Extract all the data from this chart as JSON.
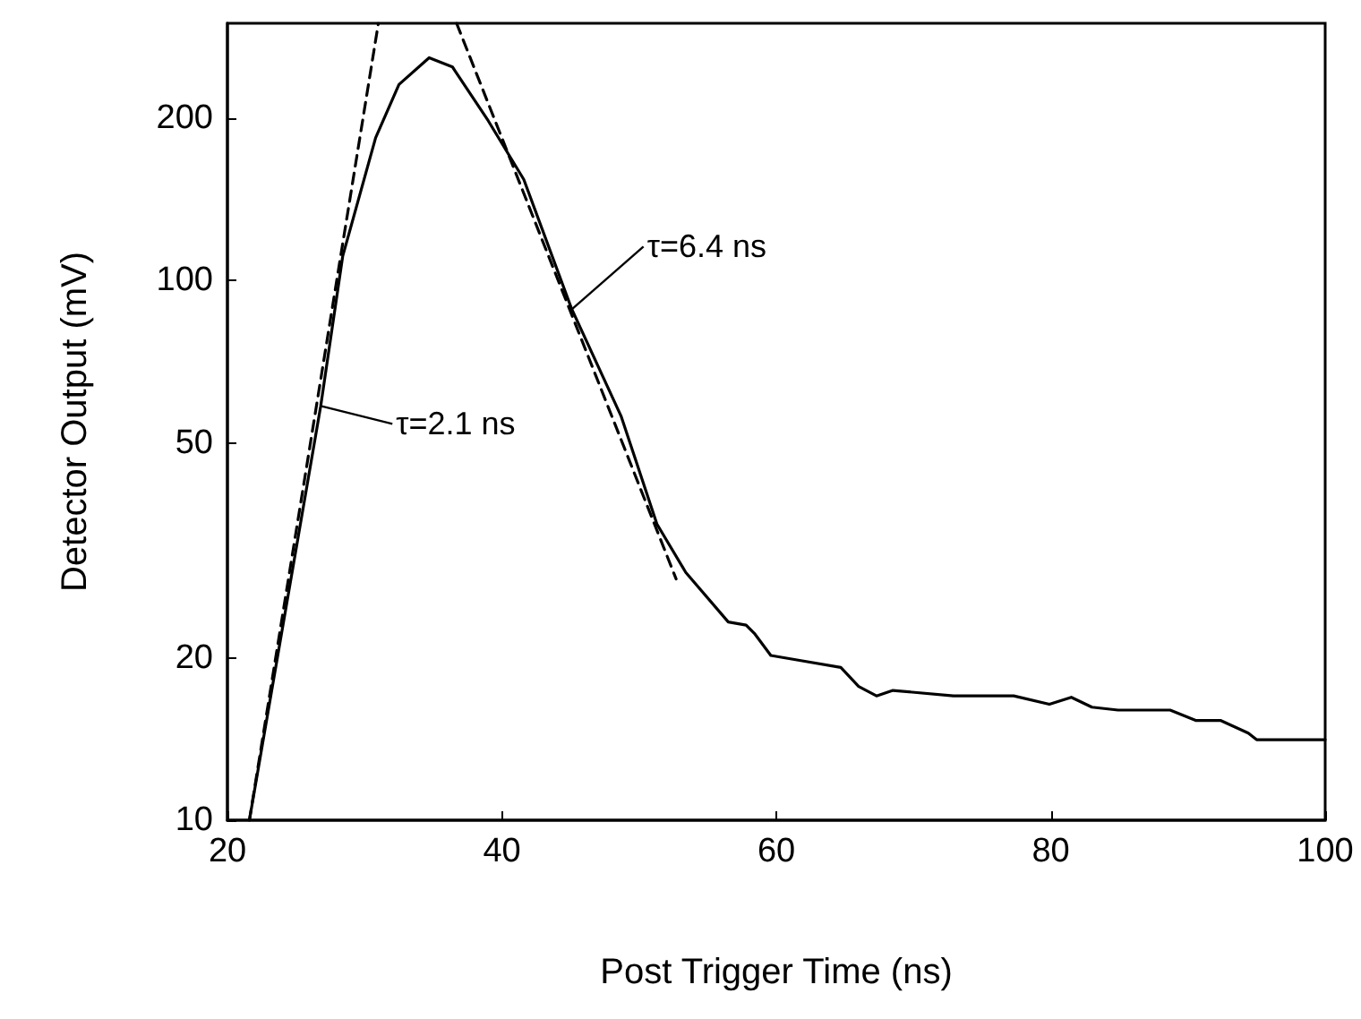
{
  "chart_data": {
    "type": "line",
    "xlabel": "Post Trigger Time (ns)",
    "ylabel": "Detector Output (mV)",
    "log": "y",
    "xlim": [
      20,
      100
    ],
    "xticks": [
      20,
      40,
      60,
      80,
      100
    ],
    "ylim": [
      10,
      300
    ],
    "yticks": [
      10,
      20,
      50,
      100,
      200
    ],
    "grid": false,
    "marker": "none",
    "series": [
      {
        "color": "#000000",
        "line_style": "solid",
        "x": [
          21.6,
          26.8,
          28.4,
          30.8,
          32.5,
          34.7,
          36.4,
          39.0,
          41.6,
          45.1,
          48.7,
          51.3,
          53.4,
          56.5,
          57.8,
          58.4,
          59.6,
          61.6,
          64.7,
          66.0,
          67.3,
          68.5,
          72.9,
          77.3,
          79.9,
          81.5,
          83.0,
          84.9,
          88.7,
          90.6,
          92.4,
          94.4,
          95.0,
          100
        ],
        "values": [
          10,
          58.6,
          111,
          184,
          231,
          259,
          249,
          198,
          154,
          88.5,
          56,
          35.4,
          28.8,
          23.3,
          23,
          22.2,
          20.2,
          19.8,
          19.2,
          17.7,
          17,
          17.4,
          17,
          17,
          16.4,
          16.9,
          16.2,
          16,
          16,
          15.3,
          15.3,
          14.5,
          14.1,
          14.1
        ]
      },
      {
        "color": "#000000",
        "line_style": "dashed",
        "x": [
          21.6,
          31.0
        ],
        "values": [
          10,
          300
        ]
      },
      {
        "color": "#000000",
        "line_style": "dashed",
        "x": [
          36.7,
          52.7
        ],
        "values": [
          300,
          28
        ]
      }
    ],
    "annotations": [
      {
        "text": "τ=2.1 ns",
        "x": 26.8,
        "y": 58.6
      },
      {
        "text": "τ=6.4 ns",
        "x": 45.1,
        "y": 88.5
      }
    ]
  }
}
